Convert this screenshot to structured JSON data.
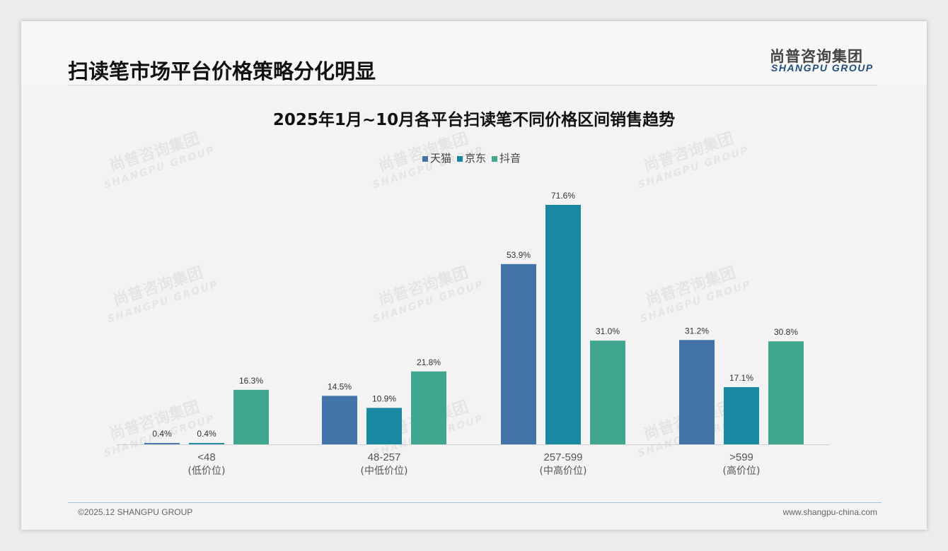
{
  "header": {
    "title": "扫读笔市场平台价格策略分化明显",
    "logo_cn": "尚普咨询集团",
    "logo_en": "SHANGPU GROUP"
  },
  "footer": {
    "copyright": "©2025.12 SHANGPU GROUP",
    "website": "www.shangpu-china.com"
  },
  "chart_data": {
    "type": "bar",
    "title": "2025年1月~10月各平台扫读笔不同价格区间销售趋势",
    "categories": [
      "<48",
      "48-257",
      "257-599",
      ">599"
    ],
    "category_sublabels": [
      "(低价位)",
      "(中低价位)",
      "(中高价位)",
      "(高价位)"
    ],
    "series": [
      {
        "name": "天猫",
        "color": "#4374a9",
        "values": [
          0.4,
          14.5,
          53.9,
          31.2
        ]
      },
      {
        "name": "京东",
        "color": "#1a88a0",
        "values": [
          0.4,
          10.9,
          71.6,
          17.1
        ]
      },
      {
        "name": "抖音",
        "color": "#41a68f",
        "values": [
          16.3,
          21.8,
          31.0,
          30.8
        ]
      }
    ],
    "unit": "%",
    "legend": "top-center",
    "ylim": [
      0,
      75
    ],
    "grid": false
  }
}
